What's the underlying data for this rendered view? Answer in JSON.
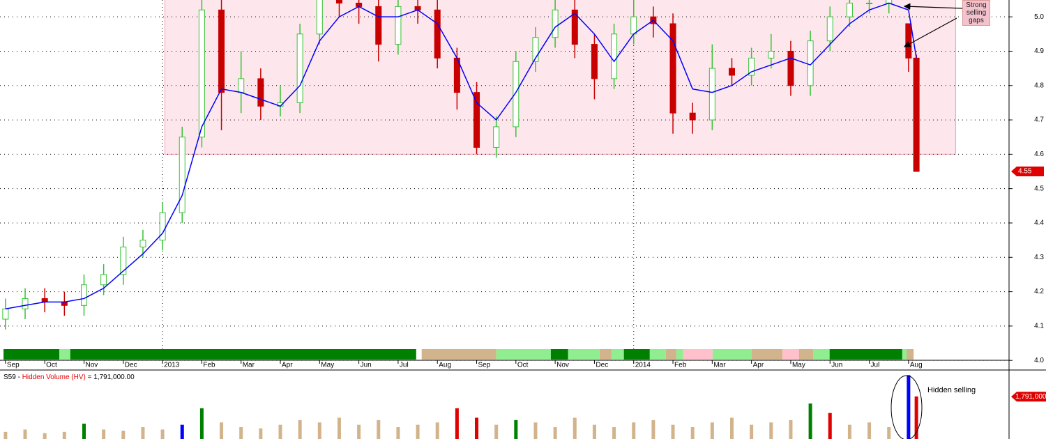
{
  "chart_data": {
    "type": "candlestick",
    "x": [
      0,
      0.5,
      1,
      1.5,
      2,
      2.5,
      3,
      3.5,
      4,
      4.5,
      5,
      5.5,
      6,
      6.5,
      7,
      7.5,
      8,
      8.5,
      9,
      9.5,
      10,
      10.5,
      11,
      11.5,
      12,
      12.5,
      13,
      13.5,
      14,
      14.5,
      15,
      15.5,
      16,
      16.5,
      17,
      17.5,
      18,
      18.5,
      19,
      19.5,
      20,
      20.5,
      21,
      21.5,
      22,
      22.5,
      23,
      23.2
    ],
    "open": [
      4.12,
      4.15,
      4.18,
      4.17,
      4.16,
      4.22,
      4.25,
      4.33,
      4.35,
      4.43,
      4.65,
      5.02,
      4.78,
      4.82,
      4.74,
      4.75,
      4.95,
      5.05,
      5.04,
      5.03,
      4.92,
      5.03,
      5.02,
      4.88,
      4.78,
      4.62,
      4.68,
      4.87,
      4.94,
      5.02,
      4.92,
      4.82,
      4.95,
      5.0,
      4.98,
      4.72,
      4.7,
      4.85,
      4.83,
      4.88,
      4.9,
      4.8,
      4.93,
      5.0,
      5.04,
      5.04,
      4.98,
      4.88
    ],
    "high": [
      4.18,
      4.21,
      4.21,
      4.2,
      4.25,
      4.28,
      4.36,
      4.38,
      4.46,
      4.68,
      5.05,
      5.05,
      4.9,
      4.85,
      4.8,
      4.98,
      5.08,
      5.08,
      5.07,
      5.06,
      5.06,
      5.07,
      5.05,
      4.91,
      4.81,
      4.71,
      4.9,
      4.97,
      5.05,
      5.05,
      4.95,
      4.98,
      5.05,
      5.03,
      5.01,
      4.75,
      4.92,
      4.88,
      4.91,
      4.95,
      4.93,
      4.96,
      5.03,
      5.07,
      5.07,
      5.08,
      4.98,
      4.89
    ],
    "low": [
      4.09,
      4.12,
      4.14,
      4.13,
      4.13,
      4.19,
      4.22,
      4.3,
      4.32,
      4.4,
      4.62,
      4.67,
      4.72,
      4.7,
      4.71,
      4.72,
      4.92,
      5.0,
      4.98,
      4.87,
      4.89,
      4.98,
      4.85,
      4.73,
      4.6,
      4.59,
      4.65,
      4.84,
      4.91,
      4.88,
      4.76,
      4.79,
      4.92,
      4.94,
      4.66,
      4.66,
      4.67,
      4.8,
      4.8,
      4.85,
      4.77,
      4.77,
      4.9,
      4.97,
      5.01,
      5.01,
      4.84,
      4.55
    ],
    "close": [
      4.15,
      4.18,
      4.17,
      4.16,
      4.22,
      4.25,
      4.33,
      4.35,
      4.43,
      4.65,
      5.02,
      4.78,
      4.82,
      4.74,
      4.75,
      4.95,
      5.05,
      5.04,
      5.03,
      4.92,
      5.03,
      5.02,
      4.88,
      4.78,
      4.62,
      4.68,
      4.87,
      4.94,
      5.02,
      4.92,
      4.82,
      4.95,
      5.0,
      4.98,
      4.72,
      4.7,
      4.85,
      4.83,
      4.88,
      4.9,
      4.8,
      4.93,
      5.0,
      5.04,
      5.04,
      5.05,
      4.88,
      4.55
    ],
    "up_color": "#36c236",
    "down_color": "#c80000",
    "ma": {
      "color": "#0000ff",
      "values": [
        4.15,
        4.16,
        4.17,
        4.17,
        4.18,
        4.21,
        4.26,
        4.31,
        4.37,
        4.48,
        4.68,
        4.79,
        4.78,
        4.76,
        4.74,
        4.8,
        4.93,
        5.0,
        5.03,
        5.0,
        5.0,
        5.02,
        4.98,
        4.88,
        4.75,
        4.7,
        4.78,
        4.88,
        4.97,
        5.01,
        4.95,
        4.87,
        4.95,
        4.99,
        4.93,
        4.79,
        4.78,
        4.8,
        4.84,
        4.86,
        4.88,
        4.86,
        4.92,
        4.98,
        5.02,
        5.04,
        5.02,
        4.88
      ]
    },
    "xlim": [
      -0.14,
      25.56
    ],
    "ylim": [
      3.974,
      5.049
    ],
    "yticks": [
      {
        "value": 4,
        "label": "4.0"
      },
      4.1,
      4.2,
      4.3,
      4.4,
      4.5,
      4.6,
      4.7,
      4.8,
      4.9,
      {
        "value": 5,
        "label": "5.0"
      }
    ],
    "xticks": [
      {
        "value": 0,
        "label": "Sep"
      },
      {
        "value": 1,
        "label": "Oct"
      },
      {
        "value": 2,
        "label": "Nov"
      },
      {
        "value": 3,
        "label": "Dec"
      },
      {
        "value": 4,
        "label": "2013"
      },
      {
        "value": 5,
        "label": "Feb"
      },
      {
        "value": 6,
        "label": "Mar"
      },
      {
        "value": 7,
        "label": "Apr"
      },
      {
        "value": 8,
        "label": "May"
      },
      {
        "value": 9,
        "label": "Jun"
      },
      {
        "value": 10,
        "label": "Jul"
      },
      {
        "value": 11,
        "label": "Aug"
      },
      {
        "value": 12,
        "label": "Sep"
      },
      {
        "value": 13,
        "label": "Oct"
      },
      {
        "value": 14,
        "label": "Nov"
      },
      {
        "value": 15,
        "label": "Dec"
      },
      {
        "value": 16,
        "label": "2014"
      },
      {
        "value": 17,
        "label": "Feb"
      },
      {
        "value": 18,
        "label": "Mar"
      },
      {
        "value": 19,
        "label": "Apr"
      },
      {
        "value": 20,
        "label": "May"
      },
      {
        "value": 21,
        "label": "Jun"
      },
      {
        "value": 22,
        "label": "Jul"
      },
      {
        "value": 23,
        "label": "Aug"
      }
    ],
    "grid": true,
    "shaded_range": {
      "x": [
        4.06,
        24.2
      ],
      "y": [
        4.6,
        5.06
      ],
      "color": "#fde6ec"
    },
    "last_price": 4.55,
    "last_price_color": "#e00000",
    "annotation": "Strong selling gaps",
    "trend_strip": [
      {
        "x": [
          -0.05,
          1.37
        ],
        "color": "#008000"
      },
      {
        "x": [
          1.37,
          1.65
        ],
        "color": "#90ee90"
      },
      {
        "x": [
          1.65,
          10.46
        ],
        "color": "#008000"
      },
      {
        "x": [
          10.6,
          12.5
        ],
        "color": "#d2b48c"
      },
      {
        "x": [
          12.5,
          13.89
        ],
        "color": "#90ee90"
      },
      {
        "x": [
          13.89,
          14.33
        ],
        "color": "#008000"
      },
      {
        "x": [
          14.33,
          15.13
        ],
        "color": "#90ee90"
      },
      {
        "x": [
          15.13,
          15.44
        ],
        "color": "#d2b48c"
      },
      {
        "x": [
          15.44,
          15.75
        ],
        "color": "#90ee90"
      },
      {
        "x": [
          15.75,
          16.41
        ],
        "color": "#008000"
      },
      {
        "x": [
          16.41,
          16.82
        ],
        "color": "#90ee90"
      },
      {
        "x": [
          16.82,
          17.09
        ],
        "color": "#d2b48c"
      },
      {
        "x": [
          17.09,
          17.26
        ],
        "color": "#90ee90"
      },
      {
        "x": [
          17.26,
          18.01
        ],
        "color": "#ffc0cb"
      },
      {
        "x": [
          18.01,
          19.0
        ],
        "color": "#90ee90"
      },
      {
        "x": [
          19.0,
          19.79
        ],
        "color": "#d2b48c"
      },
      {
        "x": [
          19.79,
          20.21
        ],
        "color": "#ffc0cb"
      },
      {
        "x": [
          20.21,
          20.57
        ],
        "color": "#d2b48c"
      },
      {
        "x": [
          20.57,
          20.99
        ],
        "color": "#90ee90"
      },
      {
        "x": [
          20.99,
          22.84
        ],
        "color": "#008000"
      },
      {
        "x": [
          22.84,
          22.95
        ],
        "color": "#90ee90"
      },
      {
        "x": [
          22.95,
          23.13
        ],
        "color": "#d2b48c"
      }
    ],
    "volume": {
      "symbol": "S59 -",
      "name": "Hidden Volume (HV)",
      "equals": "=",
      "last": 1791000,
      "last_label": "1,791,000.00",
      "ylim": [
        0,
        2800000
      ],
      "values": [
        300000,
        400000,
        250000,
        300000,
        650000,
        400000,
        350000,
        500000,
        400000,
        600000,
        1300000,
        700000,
        500000,
        450000,
        600000,
        800000,
        700000,
        900000,
        600000,
        800000,
        500000,
        600000,
        700000,
        1300000,
        900000,
        600000,
        800000,
        700000,
        500000,
        900000,
        600000,
        500000,
        700000,
        800000,
        600000,
        500000,
        700000,
        900000,
        600000,
        700000,
        800000,
        1500000,
        1100000,
        600000,
        700000,
        500000,
        2700000,
        1800000
      ],
      "colors": [
        "#d2b48c",
        "#d2b48c",
        "#d2b48c",
        "#d2b48c",
        "#008000",
        "#d2b48c",
        "#d2b48c",
        "#d2b48c",
        "#d2b48c",
        "#0000ff",
        "#008000",
        "#d2b48c",
        "#d2b48c",
        "#d2b48c",
        "#d2b48c",
        "#d2b48c",
        "#d2b48c",
        "#d2b48c",
        "#d2b48c",
        "#d2b48c",
        "#d2b48c",
        "#d2b48c",
        "#d2b48c",
        "#e00000",
        "#e00000",
        "#d2b48c",
        "#008000",
        "#d2b48c",
        "#d2b48c",
        "#d2b48c",
        "#d2b48c",
        "#d2b48c",
        "#d2b48c",
        "#d2b48c",
        "#d2b48c",
        "#d2b48c",
        "#d2b48c",
        "#d2b48c",
        "#d2b48c",
        "#d2b48c",
        "#d2b48c",
        "#008000",
        "#e00000",
        "#d2b48c",
        "#d2b48c",
        "#d2b48c",
        "#0000ff",
        "#e00000"
      ],
      "annotation": "Hidden selling"
    }
  }
}
